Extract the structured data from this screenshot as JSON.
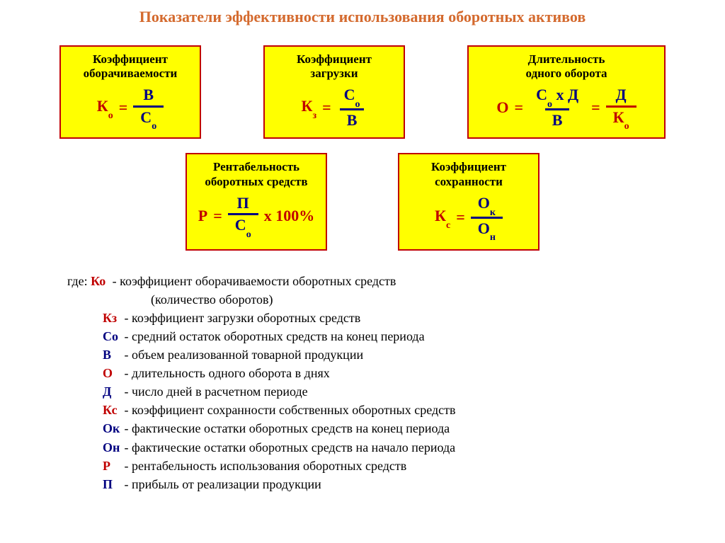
{
  "colors": {
    "title": "#d46a2e",
    "box_bg": "#ffff00",
    "box_border": "#c00000",
    "box_title": "#000000",
    "red": "#c00000",
    "blue": "#000080",
    "fracbar_blue": "#000080",
    "fracbar_red": "#c00000",
    "black": "#000000"
  },
  "title": "Показатели эффективности использования оборотных активов",
  "box1": {
    "title": "Коэффициент\nоборачиваемости"
  },
  "box2": {
    "title": "Коэффициент\nзагрузки"
  },
  "box3": {
    "title": "Длительность\nодного оборота"
  },
  "box4": {
    "title": "Рентабельность\nоборотных средств"
  },
  "box5": {
    "title": "Коэффициент\nсохранности"
  },
  "sym": {
    "K": "К",
    "o": "о",
    "z": "з",
    "s": "с",
    "B": "В",
    "So": "С",
    "oo": "о",
    "O": "О",
    "D": "Д",
    "Ok": "О",
    "k": "к",
    "On": "О",
    "n": "н",
    "P": "Р",
    "Pi": "П",
    "eq": " = ",
    "x": " х ",
    "pct": " х 100%"
  },
  "legend": {
    "where": "где: ",
    "items": [
      {
        "l": "Ко",
        "c": "red",
        "t": " - коэффициент оборачиваемости оборотных средств",
        "cont": "(количество оборотов)"
      },
      {
        "l": "Кз",
        "c": "red",
        "t": " - коэффициент загрузки оборотных средств"
      },
      {
        "l": "Со",
        "c": "blue",
        "t": " - средний остаток оборотных средств на конец периода"
      },
      {
        "l": "В",
        "c": "blue",
        "t": "  - объем реализованной товарной продукции"
      },
      {
        "l": "О",
        "c": "red",
        "t": "  - длительность одного оборота в днях"
      },
      {
        "l": "Д",
        "c": "blue",
        "t": "  - число дней в расчетном периоде"
      },
      {
        "l": "Кс",
        "c": "red",
        "t": " - коэффициент сохранности собственных оборотных средств"
      },
      {
        "l": "Ок",
        "c": "blue",
        "t": " - фактические остатки оборотных средств на конец периода"
      },
      {
        "l": "Он",
        "c": "blue",
        "t": " - фактические остатки оборотных средств на начало периода"
      },
      {
        "l": "Р",
        "c": "red",
        "t": "  - рентабельность использования оборотных средств"
      },
      {
        "l": "П",
        "c": "blue",
        "t": "  - прибыль от реализации продукции"
      }
    ]
  }
}
